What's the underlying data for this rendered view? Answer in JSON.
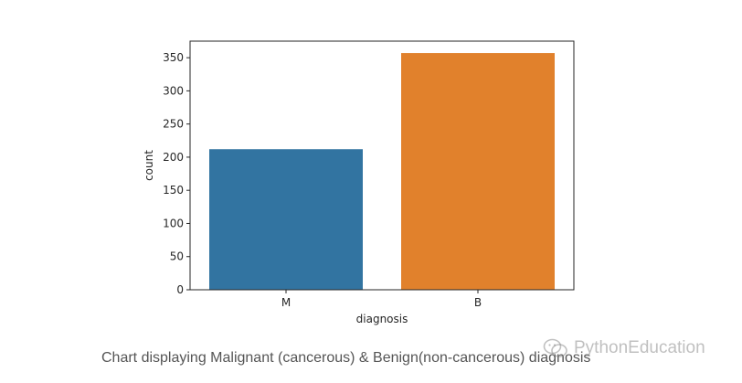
{
  "chart_data": {
    "type": "bar",
    "categories": [
      "M",
      "B"
    ],
    "values": [
      212,
      357
    ],
    "colors": [
      "#3274a1",
      "#e1812c"
    ],
    "xlabel": "diagnosis",
    "ylabel": "count",
    "ylim": [
      0,
      375
    ],
    "yticks": [
      0,
      50,
      100,
      150,
      200,
      250,
      300,
      350
    ],
    "grid": false,
    "legend": false
  },
  "caption": "Chart displaying Malignant (cancerous) & Benign(non-cancerous) diagnosis",
  "watermark": {
    "text": "PythonEducation",
    "icon": "wechat-icon"
  }
}
